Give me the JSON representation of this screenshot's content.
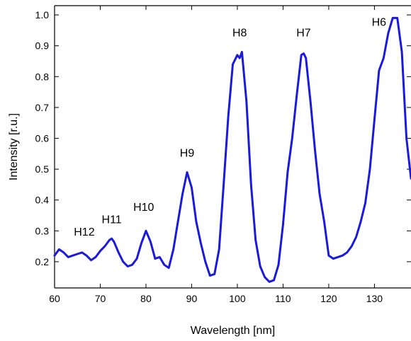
{
  "chart_data": {
    "type": "line",
    "title": "",
    "xlabel": "Wavelength [nm]",
    "ylabel": "Intensity [r.u.]",
    "xlim": [
      60,
      138
    ],
    "ylim": [
      0.115,
      1.03
    ],
    "xticks": [
      60,
      70,
      80,
      90,
      100,
      110,
      120,
      130
    ],
    "yticks": [
      0.2,
      0.3,
      0.4,
      0.5,
      0.6,
      0.7,
      0.8,
      0.9,
      1.0
    ],
    "ytick_labels": [
      "0.2",
      "0.3",
      "0.4",
      "0.5",
      "0.6",
      "0.7",
      "0.8",
      "0.9",
      "1.0"
    ],
    "grid": false,
    "line_color": "#1a1adc",
    "series": [
      {
        "x": [
          60,
          61,
          62,
          63,
          64,
          65,
          66,
          67,
          68,
          69,
          70,
          71,
          72,
          72.5,
          73,
          74,
          75,
          76,
          77,
          78,
          79,
          80,
          81,
          82,
          83,
          84,
          85,
          86,
          87,
          88,
          89,
          90,
          91,
          92,
          93,
          94,
          95,
          96,
          97,
          98,
          99,
          100,
          100.5,
          101,
          102,
          103,
          104,
          105,
          106,
          107,
          108,
          109,
          110,
          111,
          112,
          113,
          114,
          114.5,
          115,
          116,
          117,
          118,
          119,
          120,
          121,
          122,
          123,
          124,
          125,
          126,
          127,
          128,
          129,
          130,
          131,
          132,
          133,
          134,
          135,
          136,
          137,
          138
        ],
        "y": [
          0.22,
          0.24,
          0.23,
          0.215,
          0.22,
          0.225,
          0.23,
          0.22,
          0.205,
          0.215,
          0.235,
          0.25,
          0.27,
          0.275,
          0.265,
          0.23,
          0.2,
          0.185,
          0.19,
          0.21,
          0.26,
          0.3,
          0.265,
          0.21,
          0.215,
          0.19,
          0.18,
          0.24,
          0.33,
          0.42,
          0.49,
          0.44,
          0.33,
          0.26,
          0.2,
          0.155,
          0.16,
          0.24,
          0.45,
          0.67,
          0.84,
          0.87,
          0.86,
          0.88,
          0.72,
          0.45,
          0.27,
          0.185,
          0.15,
          0.135,
          0.14,
          0.19,
          0.32,
          0.49,
          0.6,
          0.74,
          0.87,
          0.875,
          0.86,
          0.72,
          0.56,
          0.42,
          0.33,
          0.22,
          0.21,
          0.215,
          0.22,
          0.23,
          0.25,
          0.28,
          0.33,
          0.39,
          0.5,
          0.66,
          0.82,
          0.86,
          0.94,
          0.99,
          0.99,
          0.88,
          0.6,
          0.47
        ]
      }
    ],
    "annotations": [
      {
        "text": "H12",
        "x": 66.5,
        "y": 0.285
      },
      {
        "text": "H11",
        "x": 72.5,
        "y": 0.325
      },
      {
        "text": "H10",
        "x": 79.5,
        "y": 0.365
      },
      {
        "text": "H9",
        "x": 89,
        "y": 0.54
      },
      {
        "text": "H8",
        "x": 100.5,
        "y": 0.93
      },
      {
        "text": "H7",
        "x": 114.5,
        "y": 0.93
      },
      {
        "text": "H6",
        "x": 131,
        "y": 0.965
      }
    ]
  }
}
